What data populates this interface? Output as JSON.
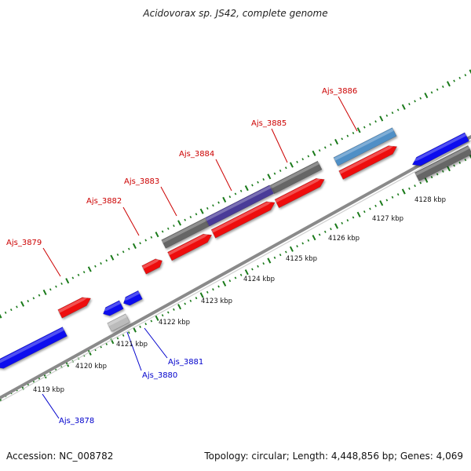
{
  "title": "Acidovorax sp. JS42, complete genome",
  "footer": {
    "accession": "Accession: NC_008782",
    "topology": "Topology: circular; Length: 4,448,856 bp; Genes: 4,069"
  },
  "scale_labels": [
    "4119 kbp",
    "4120 kbp",
    "4121 kbp",
    "4122 kbp",
    "4123 kbp",
    "4124 kbp",
    "4125 kbp",
    "4126 kbp",
    "4127 kbp",
    "4128 kbp"
  ],
  "gene_labels": {
    "forward": [
      "Ajs_3879",
      "Ajs_3882",
      "Ajs_3883",
      "Ajs_3884",
      "Ajs_3885",
      "Ajs_3886"
    ],
    "reverse": [
      "Ajs_3878",
      "Ajs_3880",
      "Ajs_3881"
    ]
  },
  "colors": {
    "forward_label": "#cc0000",
    "reverse_label": "#0000cc",
    "forward_gene": "#ee1111",
    "reverse_gene": "#1111ee",
    "cds_track": "#666666",
    "pseudogene": "#bbbbbb",
    "highlight_purple": "#4a3a98",
    "highlight_blue": "#4f8fc6",
    "backbone": "#8a8a8a",
    "tick_green": "#1a7a1a"
  }
}
